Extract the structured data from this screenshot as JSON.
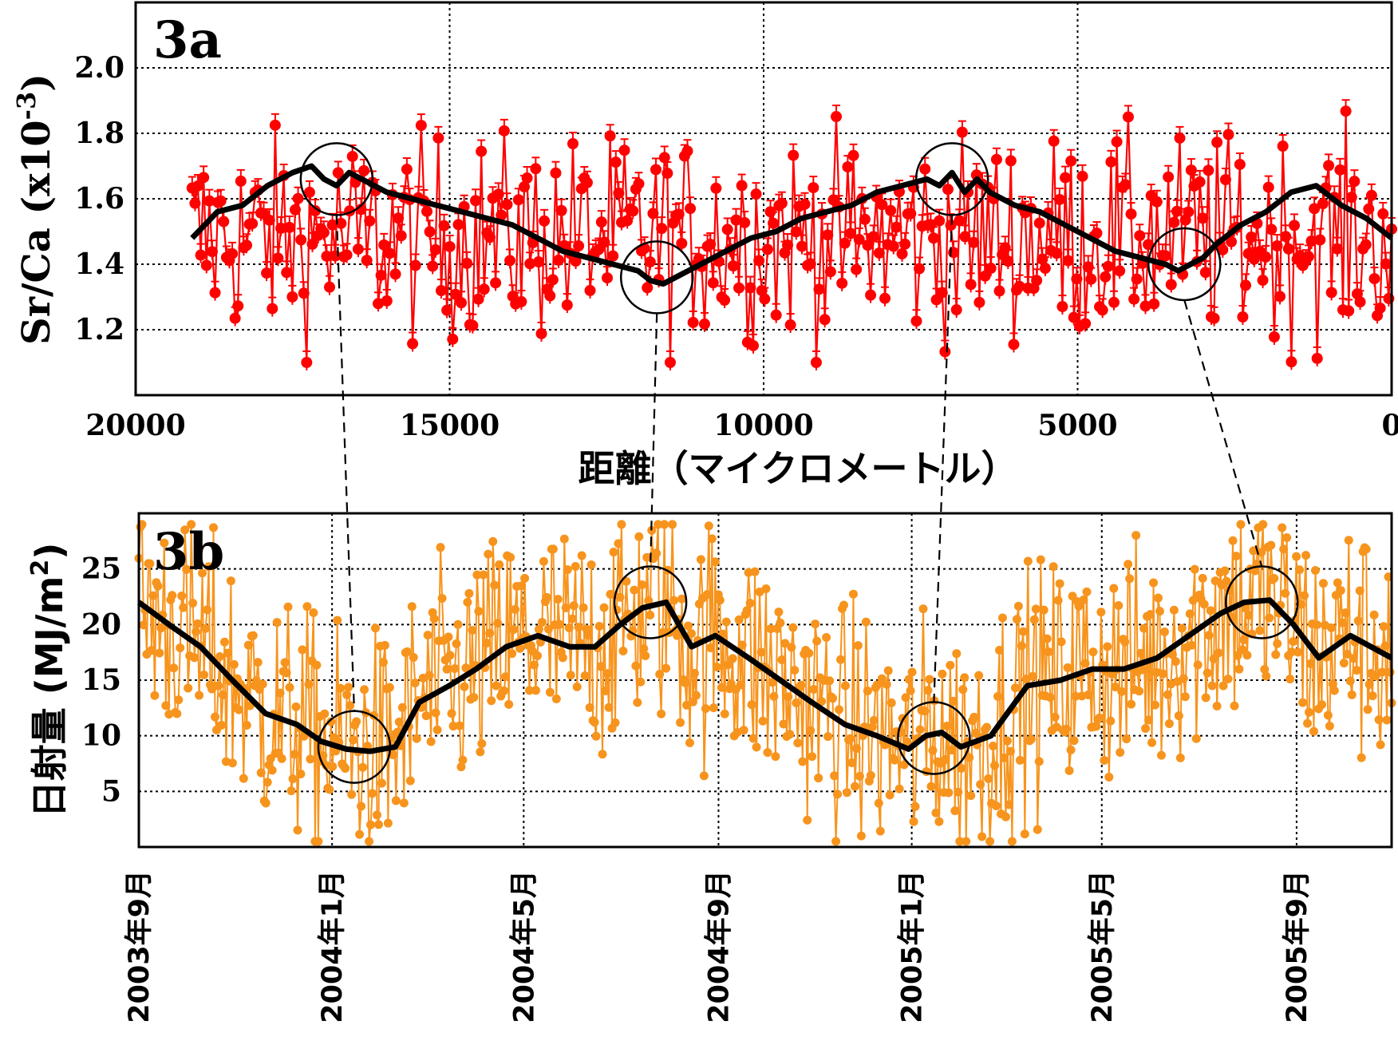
{
  "chart_data": [
    {
      "panel": "3a",
      "type": "line",
      "ylabel_main": "Sr/Ca (x10",
      "ylabel_exp": "-3",
      "ylabel_close": ")",
      "xlabel": "距離（マイクロメートル）",
      "xlim": [
        20000,
        0
      ],
      "ylim": [
        1.0,
        2.2
      ],
      "xticks": [
        20000,
        15000,
        10000,
        5000,
        0
      ],
      "xtick_labels": [
        "20000",
        "15000",
        "10000",
        "5000",
        "0"
      ],
      "yticks": [
        1.2,
        1.4,
        1.6,
        1.8,
        2.0
      ],
      "ytick_labels": [
        "1.2",
        "1.4",
        "1.6",
        "1.8",
        "2.0"
      ],
      "grid": true,
      "colors": {
        "raw": "#ff0000",
        "smooth": "#000000"
      },
      "raw_x_range": [
        19100,
        0
      ],
      "raw_points": 420,
      "smooth_series": {
        "x": [
          19100,
          18700,
          18300,
          17900,
          17500,
          17200,
          17000,
          16800,
          16600,
          16400,
          16000,
          15600,
          15200,
          14800,
          14400,
          14000,
          13600,
          13200,
          12800,
          12400,
          12000,
          11800,
          11600,
          11400,
          11200,
          11000,
          10600,
          10200,
          9800,
          9400,
          9000,
          8600,
          8200,
          7800,
          7400,
          7200,
          7000,
          6800,
          6600,
          6400,
          6000,
          5600,
          5200,
          4800,
          4400,
          4000,
          3600,
          3400,
          3200,
          3000,
          2800,
          2400,
          2000,
          1600,
          1200,
          800,
          400,
          0
        ],
        "y": [
          1.48,
          1.56,
          1.58,
          1.64,
          1.68,
          1.7,
          1.66,
          1.64,
          1.68,
          1.66,
          1.62,
          1.6,
          1.58,
          1.56,
          1.54,
          1.52,
          1.48,
          1.44,
          1.42,
          1.4,
          1.38,
          1.35,
          1.34,
          1.36,
          1.38,
          1.4,
          1.44,
          1.48,
          1.5,
          1.54,
          1.56,
          1.58,
          1.62,
          1.64,
          1.66,
          1.64,
          1.68,
          1.62,
          1.66,
          1.62,
          1.58,
          1.56,
          1.52,
          1.48,
          1.44,
          1.42,
          1.4,
          1.38,
          1.4,
          1.42,
          1.46,
          1.52,
          1.56,
          1.62,
          1.64,
          1.58,
          1.54,
          1.48
        ]
      },
      "circles": [
        {
          "x": 16800,
          "y": 1.66
        },
        {
          "x": 11700,
          "y": 1.36
        },
        {
          "x": 7000,
          "y": 1.66
        },
        {
          "x": 3300,
          "y": 1.4
        }
      ]
    },
    {
      "panel": "3b",
      "type": "line",
      "ylabel_main": "日射量 (MJ/m",
      "ylabel_exp": "2",
      "ylabel_close": ")",
      "xlim": [
        "2003-09-01",
        "2005-10-31"
      ],
      "ylim": [
        0,
        30
      ],
      "yticks": [
        5,
        10,
        15,
        20,
        25
      ],
      "ytick_labels": [
        "5",
        "10",
        "15",
        "20",
        "25"
      ],
      "xticks": [
        "2003-09-01",
        "2004-01-01",
        "2004-05-01",
        "2004-09-01",
        "2005-01-01",
        "2005-05-01",
        "2005-09-01"
      ],
      "xtick_labels": [
        "2003年9月",
        "2004年1月",
        "2004年5月",
        "2004年9月",
        "2005年1月",
        "2005年5月",
        "2005年9月"
      ],
      "grid": true,
      "colors": {
        "raw": "#f7941d",
        "smooth": "#000000"
      },
      "raw_points": 790,
      "smooth_series": {
        "x": [
          "2003-09-01",
          "2003-09-20",
          "2003-10-10",
          "2003-10-30",
          "2003-11-20",
          "2003-12-10",
          "2003-12-25",
          "2004-01-10",
          "2004-01-25",
          "2004-02-10",
          "2004-02-25",
          "2004-03-15",
          "2004-04-01",
          "2004-04-20",
          "2004-05-10",
          "2004-05-30",
          "2004-06-15",
          "2004-07-01",
          "2004-07-15",
          "2004-07-30",
          "2004-08-15",
          "2004-08-30",
          "2004-09-20",
          "2004-10-10",
          "2004-10-30",
          "2004-11-20",
          "2004-12-10",
          "2004-12-30",
          "2005-01-10",
          "2005-01-20",
          "2005-02-01",
          "2005-02-20",
          "2005-03-15",
          "2005-04-05",
          "2005-04-25",
          "2005-05-15",
          "2005-06-05",
          "2005-06-25",
          "2005-07-15",
          "2005-07-30",
          "2005-08-15",
          "2005-08-30",
          "2005-09-15",
          "2005-10-05",
          "2005-10-31"
        ],
        "y": [
          22,
          20,
          18,
          15,
          12,
          11,
          9.5,
          8.8,
          8.6,
          9,
          13,
          14.5,
          16,
          18,
          19,
          18,
          18,
          20,
          21.5,
          22,
          18,
          19,
          17,
          15,
          13,
          11,
          10,
          8.8,
          10,
          10.3,
          9,
          10,
          14.5,
          15,
          16,
          16,
          17,
          19,
          21,
          22,
          22.2,
          20,
          17,
          19,
          17
        ]
      },
      "circles": [
        {
          "x": "2004-01-15",
          "y": 9
        },
        {
          "x": "2004-07-20",
          "y": 22
        },
        {
          "x": "2005-01-15",
          "y": 9.8
        },
        {
          "x": "2005-08-10",
          "y": 22
        }
      ]
    }
  ],
  "connectors": [
    {
      "from": 0,
      "to": 0
    },
    {
      "from": 1,
      "to": 1
    },
    {
      "from": 2,
      "to": 2
    },
    {
      "from": 3,
      "to": 3
    }
  ]
}
